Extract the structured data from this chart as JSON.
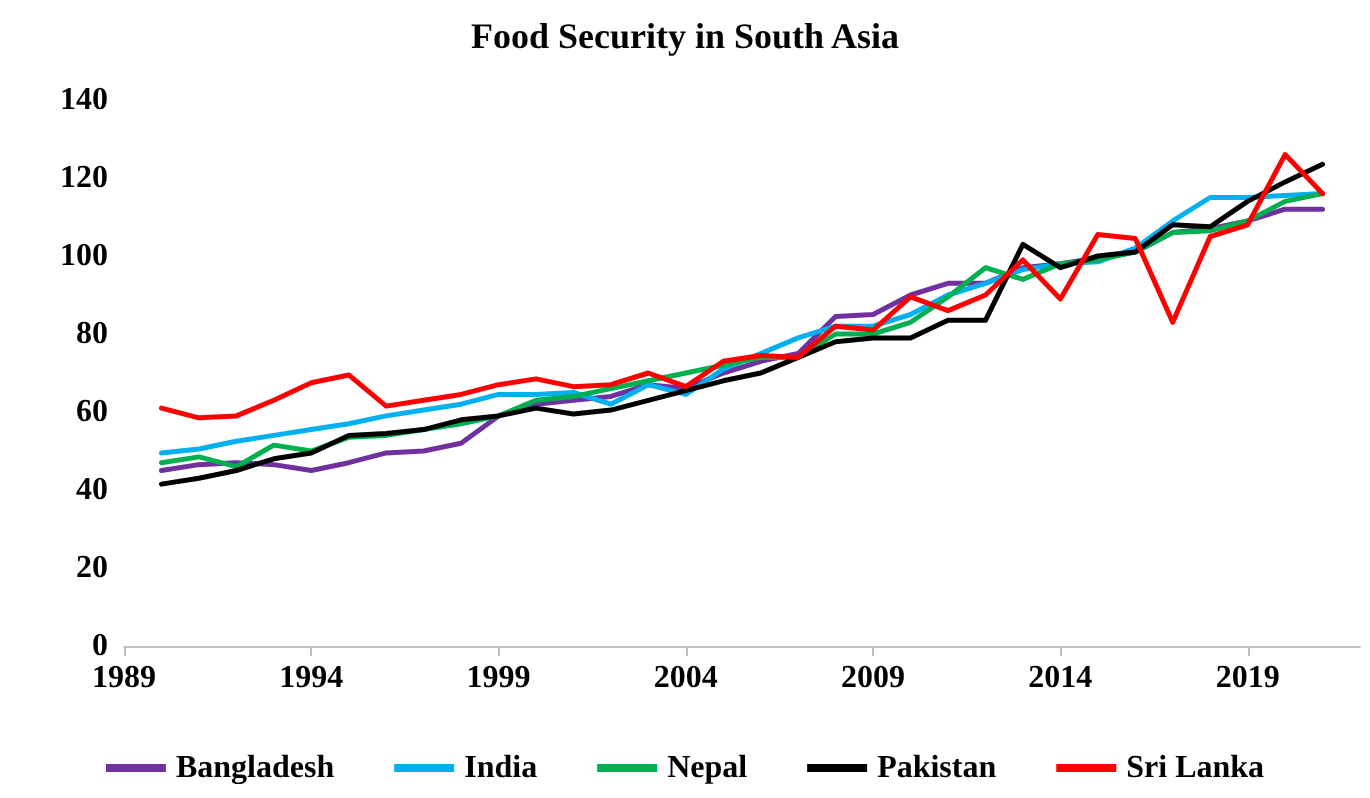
{
  "chart_data": {
    "type": "line",
    "title": "Food Security in South Asia",
    "x": [
      1990,
      1991,
      1992,
      1993,
      1994,
      1995,
      1996,
      1997,
      1998,
      1999,
      2000,
      2001,
      2002,
      2003,
      2004,
      2005,
      2006,
      2007,
      2008,
      2009,
      2010,
      2011,
      2012,
      2013,
      2014,
      2015,
      2016,
      2017,
      2018,
      2019,
      2020,
      2021
    ],
    "xlim": [
      1989,
      2022
    ],
    "xticks": [
      1989,
      1994,
      1999,
      2004,
      2009,
      2014,
      2019
    ],
    "ylim": [
      0,
      140
    ],
    "yticks": [
      0,
      20,
      40,
      60,
      80,
      100,
      120,
      140
    ],
    "grid": false,
    "legend": "bottom",
    "marker": "none",
    "line_style": "solid",
    "series": [
      {
        "name": "Bangladesh",
        "color": "#7030a0",
        "values": [
          45,
          46.5,
          47,
          46.5,
          45,
          47,
          49.5,
          50,
          52,
          59,
          62,
          63,
          64,
          67,
          66,
          70,
          73,
          75,
          84.5,
          85,
          90,
          93,
          93,
          97,
          98,
          99.5,
          101,
          106,
          107,
          109,
          112,
          112
        ]
      },
      {
        "name": "India",
        "color": "#00b0f0",
        "values": [
          49.5,
          50.5,
          52.5,
          54,
          55.5,
          57,
          59,
          60.5,
          62,
          64.5,
          64.5,
          65,
          62,
          67,
          64.5,
          71,
          75,
          79,
          82,
          82,
          85,
          90,
          93,
          96.5,
          98,
          98.5,
          102,
          109,
          115,
          115,
          115.5,
          116
        ]
      },
      {
        "name": "Nepal",
        "color": "#00b050",
        "values": [
          47,
          48.5,
          46,
          51.5,
          50,
          53.5,
          54,
          55.5,
          57,
          59,
          63,
          64,
          66,
          68,
          70,
          72,
          74,
          74,
          80,
          80,
          83,
          89.5,
          97,
          94,
          98,
          99,
          101,
          106,
          106.5,
          109,
          114,
          116
        ]
      },
      {
        "name": "Pakistan",
        "color": "#000000",
        "values": [
          41.5,
          43,
          45,
          48,
          49.5,
          54,
          54.5,
          55.5,
          58,
          59,
          61,
          59.5,
          60.5,
          63,
          65.5,
          68,
          70,
          74,
          78,
          79,
          79,
          83.5,
          83.5,
          103,
          97,
          100,
          101,
          108,
          107.5,
          114,
          119,
          123.5
        ]
      },
      {
        "name": "Sri Lanka",
        "color": "#ff0000",
        "values": [
          61,
          58.5,
          59,
          63,
          67.5,
          69.5,
          61.5,
          63,
          64.5,
          67,
          68.5,
          66.5,
          67,
          70,
          66.5,
          73,
          74.5,
          74,
          82,
          81,
          89.5,
          86,
          90,
          99,
          89,
          105.5,
          104.5,
          83,
          105,
          108,
          126,
          116
        ]
      }
    ]
  }
}
